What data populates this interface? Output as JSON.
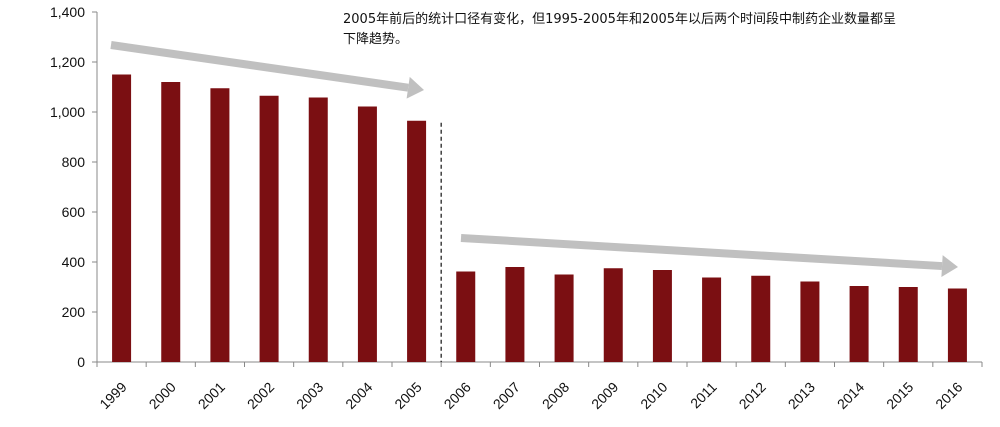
{
  "chart_data": {
    "type": "bar",
    "title": "",
    "xlabel": "",
    "ylabel": "",
    "ylim": [
      0,
      1400
    ],
    "yticks": [
      0,
      200,
      400,
      600,
      800,
      1000,
      1200,
      1400
    ],
    "ytick_labels": [
      "0",
      "200",
      "400",
      "600",
      "800",
      "1,000",
      "1,200",
      "1,400"
    ],
    "categories": [
      "1999",
      "2000",
      "2001",
      "2002",
      "2003",
      "2004",
      "2005",
      "2006",
      "2007",
      "2008",
      "2009",
      "2010",
      "2011",
      "2012",
      "2013",
      "2014",
      "2015",
      "2016"
    ],
    "values": [
      1150,
      1120,
      1095,
      1065,
      1058,
      1022,
      965,
      362,
      380,
      350,
      375,
      368,
      338,
      345,
      322,
      304,
      300,
      294
    ],
    "bar_color": "#7b0f12",
    "grid": false,
    "legend": "none",
    "annotation_text": "2005年前后的统计口径有变化，但1995-2005年和2005年以后两个时间段中制药企业数量都呈下降趋势。",
    "arrow_color": "#c0c0c0",
    "divider_after_category": "2005"
  }
}
